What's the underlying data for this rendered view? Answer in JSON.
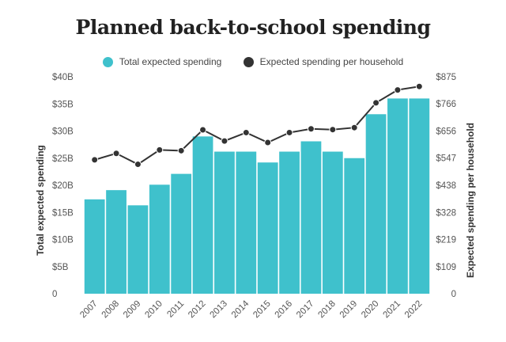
{
  "chart_data": {
    "type": "bar",
    "title": "Planned back-to-school spending",
    "categories": [
      "2007",
      "2008",
      "2009",
      "2010",
      "2011",
      "2012",
      "2013",
      "2014",
      "2015",
      "2016",
      "2017",
      "2018",
      "2019",
      "2020",
      "2021",
      "2022"
    ],
    "series": [
      {
        "name": "Total expected spending",
        "type": "bar",
        "axis": "left",
        "color": "#3fc1cc",
        "values": [
          17.4,
          19.1,
          16.3,
          20.1,
          22.1,
          29.0,
          26.2,
          26.2,
          24.2,
          26.2,
          28.1,
          26.2,
          25.0,
          33.1,
          36.0,
          36.0
        ]
      },
      {
        "name": "Expected spending per household",
        "type": "line",
        "axis": "right",
        "color": "#333333",
        "values": [
          540,
          566,
          522,
          580,
          577,
          661,
          616,
          650,
          610,
          650,
          665,
          662,
          670,
          770,
          822,
          836
        ]
      }
    ],
    "ylabel": "Total expected spending",
    "y2label": "Expected spending per household",
    "ylim": [
      0,
      40
    ],
    "y2lim": [
      0,
      875
    ],
    "yticks": [
      {
        "value": 0,
        "label": "0"
      },
      {
        "value": 5,
        "label": "$5B"
      },
      {
        "value": 10,
        "label": "$10B"
      },
      {
        "value": 15,
        "label": "$15B"
      },
      {
        "value": 20,
        "label": "$20B"
      },
      {
        "value": 25,
        "label": "$25B"
      },
      {
        "value": 30,
        "label": "$30B"
      },
      {
        "value": 35,
        "label": "$35B"
      },
      {
        "value": 40,
        "label": "$40B"
      }
    ],
    "y2ticks": [
      {
        "value": 0,
        "label": "0"
      },
      {
        "value": 109,
        "label": "$109"
      },
      {
        "value": 219,
        "label": "$219"
      },
      {
        "value": 328,
        "label": "$328"
      },
      {
        "value": 438,
        "label": "$438"
      },
      {
        "value": 547,
        "label": "$547"
      },
      {
        "value": 656,
        "label": "$656"
      },
      {
        "value": 766,
        "label": "$766"
      },
      {
        "value": 875,
        "label": "$875"
      }
    ],
    "grid": false,
    "legend": "top-center"
  }
}
